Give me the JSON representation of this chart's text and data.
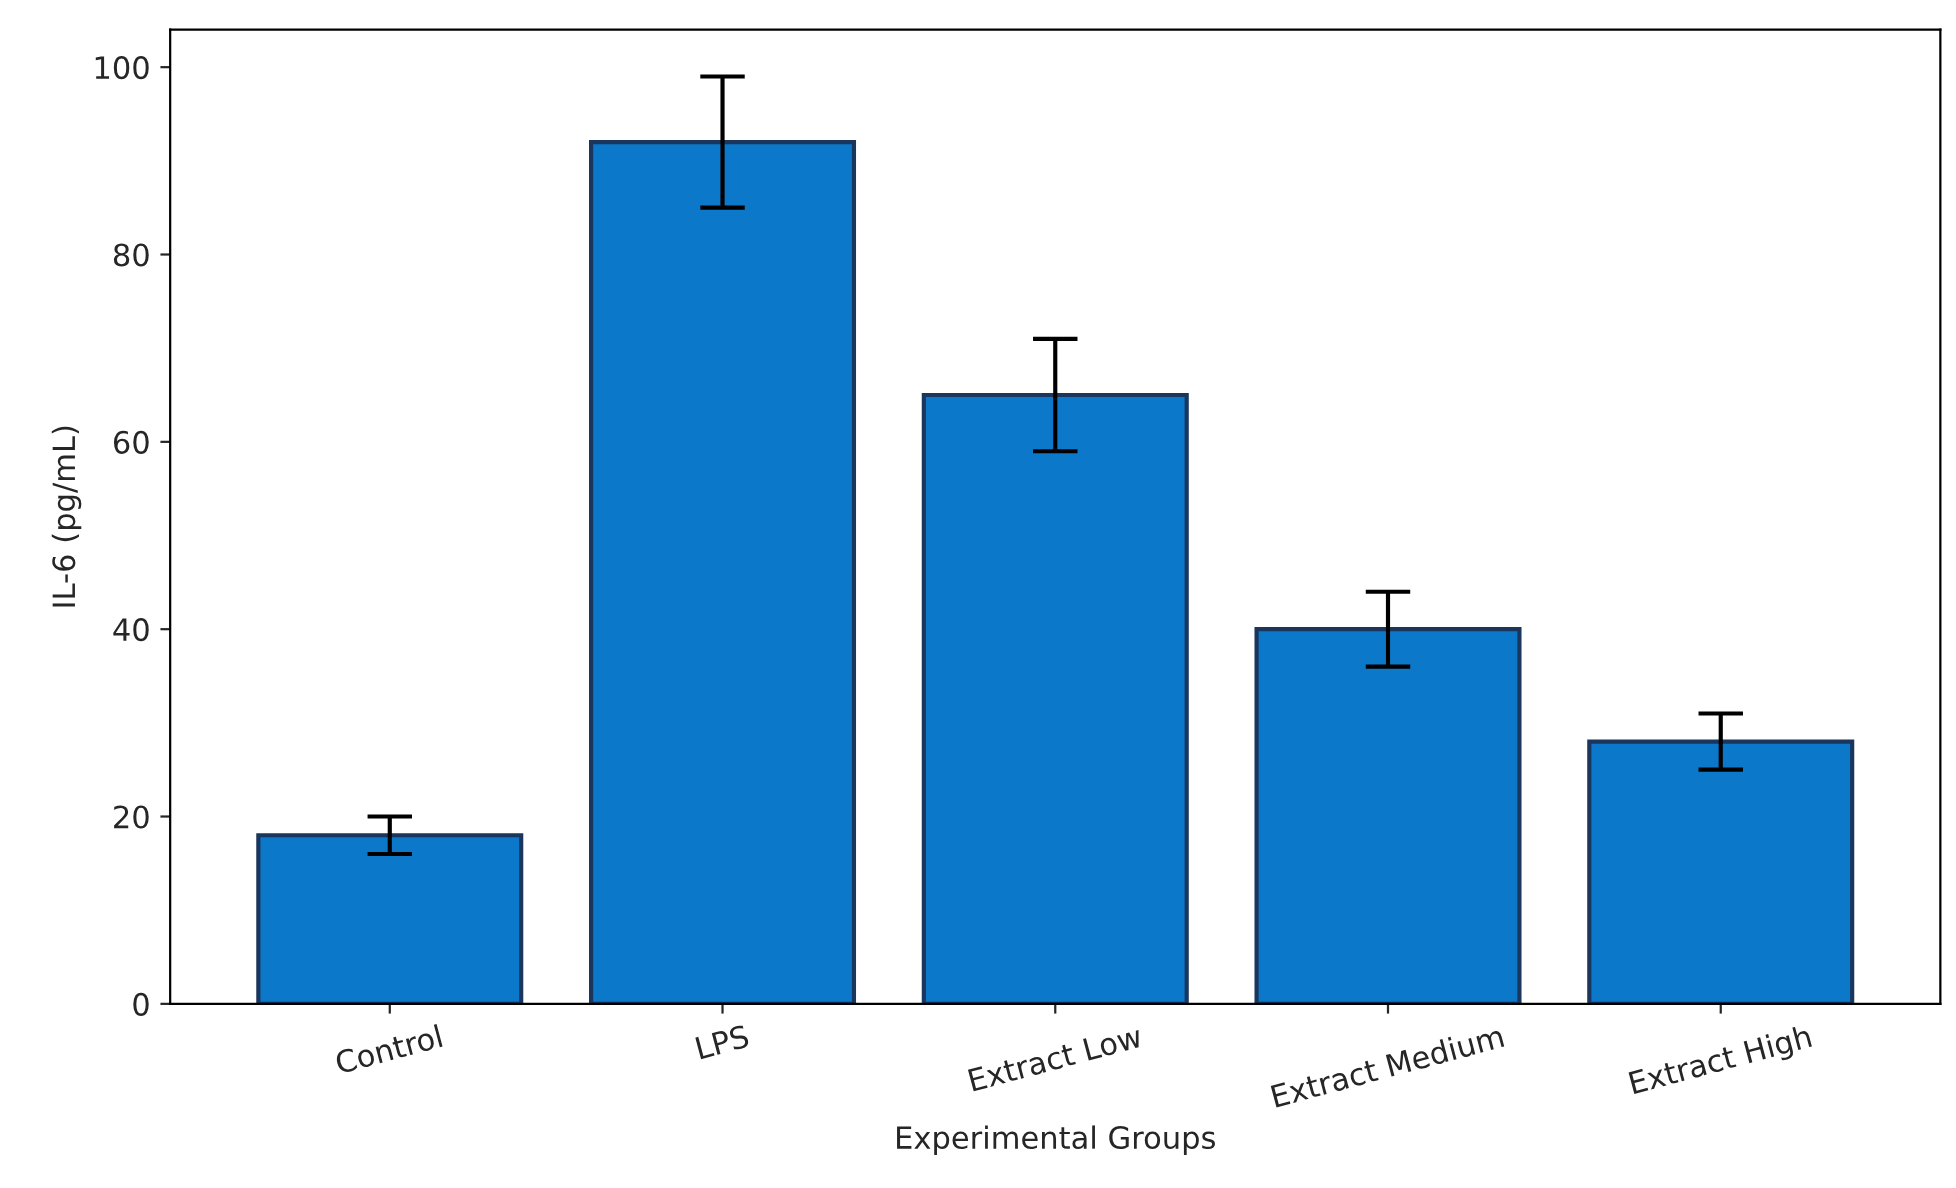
{
  "chart_data": {
    "type": "bar",
    "xlabel": "Experimental Groups",
    "ylabel": "IL-6 (pg/mL)",
    "categories": [
      "Control",
      "LPS",
      "Extract Low",
      "Extract Medium",
      "Extract High"
    ],
    "values": [
      18,
      92,
      65,
      40,
      28
    ],
    "errors": [
      2,
      7,
      6,
      4,
      3
    ],
    "color": "#0b78c9",
    "ylim": [
      0,
      104
    ],
    "yticks": [
      0,
      20,
      40,
      60,
      80,
      100
    ],
    "grid": false
  }
}
